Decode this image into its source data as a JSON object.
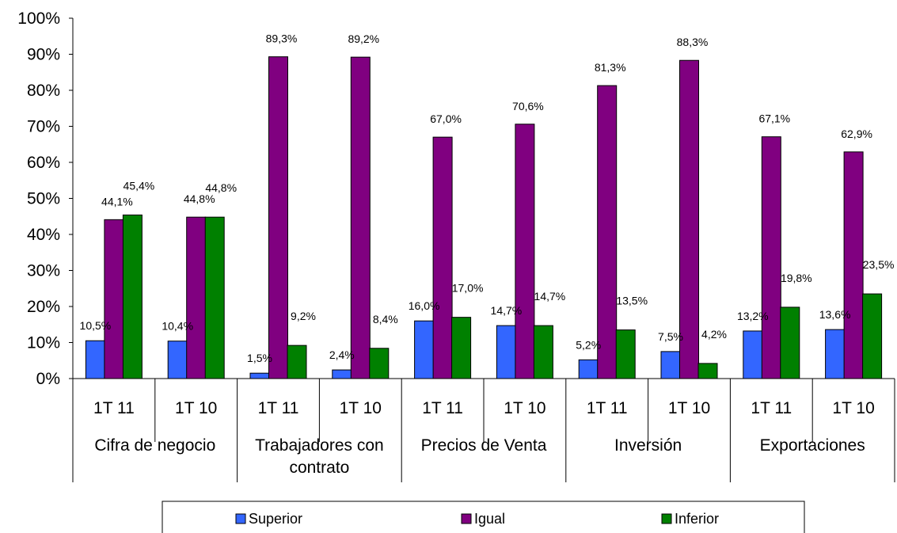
{
  "chart_data": {
    "type": "bar",
    "y_axis": {
      "min": 0,
      "max": 100,
      "step": 10,
      "tick_labels": [
        "0%",
        "10%",
        "20%",
        "30%",
        "40%",
        "50%",
        "60%",
        "70%",
        "80%",
        "90%",
        "100%"
      ]
    },
    "grid": false,
    "legend_position": "bottom",
    "groups": [
      {
        "label": "Cifra de negocio",
        "label_lines": [
          "Cifra de negocio"
        ]
      },
      {
        "label": "Trabajadores con contrato",
        "label_lines": [
          "Trabajadores con",
          "contrato"
        ]
      },
      {
        "label": "Precios de Venta",
        "label_lines": [
          "Precios de Venta"
        ]
      },
      {
        "label": "Inversión",
        "label_lines": [
          "Inversión"
        ]
      },
      {
        "label": "Exportaciones",
        "label_lines": [
          "Exportaciones"
        ]
      }
    ],
    "categories": [
      "1T 11",
      "1T 10",
      "1T 11",
      "1T 10",
      "1T 11",
      "1T 10",
      "1T 11",
      "1T 10",
      "1T 11",
      "1T 10"
    ],
    "series": [
      {
        "name": "Superior",
        "color": "#3366ff",
        "values": [
          10.5,
          10.4,
          1.5,
          2.4,
          16.0,
          14.7,
          5.2,
          7.5,
          13.2,
          13.6
        ],
        "labels": [
          "10,5%",
          "10,4%",
          "1,5%",
          "2,4%",
          "16,0%",
          "14,7%",
          "5,2%",
          "7,5%",
          "13,2%",
          "13,6%"
        ]
      },
      {
        "name": "Igual",
        "color": "#800080",
        "values": [
          44.1,
          44.8,
          89.3,
          89.2,
          67.0,
          70.6,
          81.3,
          88.3,
          67.1,
          62.9
        ],
        "labels": [
          "44,1%",
          "44,8%",
          "89,3%",
          "89,2%",
          "67,0%",
          "70,6%",
          "81,3%",
          "88,3%",
          "67,1%",
          "62,9%"
        ]
      },
      {
        "name": "Inferior",
        "color": "#008000",
        "values": [
          45.4,
          44.8,
          9.2,
          8.4,
          17.0,
          14.7,
          13.5,
          4.2,
          19.8,
          23.5
        ],
        "labels": [
          "45,4%",
          "44,8%",
          "9,2%",
          "8,4%",
          "17,0%",
          "14,7%",
          "13,5%",
          "4,2%",
          "19,8%",
          "23,5%"
        ]
      }
    ]
  }
}
